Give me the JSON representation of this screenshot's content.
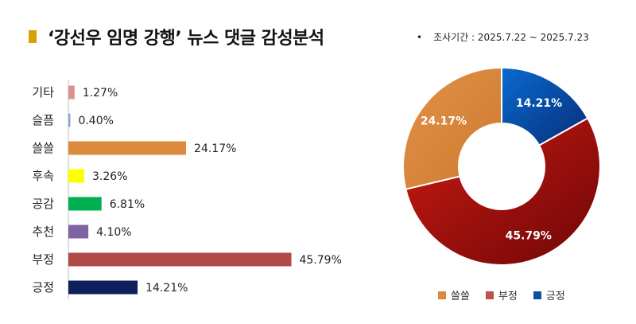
{
  "header": {
    "title": "‘강선우 임명 강행’ 뉴스 댓글 감성분석",
    "period_bullet": "•",
    "period": "조사기간 : 2025.7.22 ~ 2025.7.23"
  },
  "chart_data": [
    {
      "type": "bar",
      "orientation": "horizontal",
      "categories": [
        "기타",
        "슬픔",
        "쓸쓸",
        "후속",
        "공감",
        "추천",
        "부정",
        "긍정"
      ],
      "values": [
        1.27,
        0.4,
        24.17,
        3.26,
        6.81,
        4.1,
        45.79,
        14.21
      ],
      "value_labels": [
        "1.27%",
        "0.40%",
        "24.17%",
        "3.26%",
        "6.81%",
        "4.10%",
        "45.79%",
        "14.21%"
      ],
      "colors": [
        "#d9928e",
        "#8ea6c6",
        "#dc8a3e",
        "#ffff00",
        "#00b050",
        "#8064a2",
        "#b04a48",
        "#0d1f5c"
      ],
      "xlim": [
        0,
        50
      ],
      "grid": false,
      "title": "",
      "xlabel": "",
      "ylabel": ""
    },
    {
      "type": "pie",
      "donut": true,
      "slices": [
        {
          "label": "긍정",
          "value": 14.21,
          "value_label": "14.21%",
          "color": "#0d5ab0"
        },
        {
          "label": "부정",
          "value": 45.79,
          "value_label": "45.79%",
          "color": "#b3150f"
        },
        {
          "label": "쓸쓸",
          "value": 24.17,
          "value_label": "24.17%",
          "color": "#db873e"
        }
      ],
      "legend": {
        "placement": "bottom",
        "items": [
          {
            "label": "쓸쓸",
            "color": "#db873e"
          },
          {
            "label": "부정",
            "color": "#c0504d"
          },
          {
            "label": "긍정",
            "color": "#0d4fa0"
          }
        ]
      }
    }
  ]
}
